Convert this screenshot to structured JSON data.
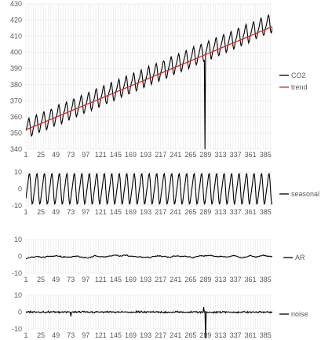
{
  "chart_data": [
    {
      "type": "line",
      "title": "",
      "xlabel": "",
      "ylabel": "",
      "ylim": [
        340,
        430
      ],
      "yticks": [
        340,
        350,
        360,
        370,
        380,
        390,
        400,
        410,
        420,
        430
      ],
      "x_range": [
        1,
        396
      ],
      "x_tick_labels": [
        "1",
        "25",
        "49",
        "73",
        "97",
        "121",
        "145",
        "169",
        "193",
        "217",
        "241",
        "265",
        "289",
        "313",
        "337",
        "361",
        "385"
      ],
      "grid": true,
      "legend_position": "right",
      "series": [
        {
          "name": "CO2",
          "color": "#000000",
          "baseline": 352.5,
          "slope": 0.1665,
          "seasonal_amplitude": 5.2,
          "annotation": "drops to 340 near x=288"
        },
        {
          "name": "trend",
          "color": "#d62728",
          "start": 352,
          "end": 416
        }
      ]
    },
    {
      "type": "line",
      "title": "",
      "ylim": [
        -10,
        10
      ],
      "yticks": [
        -10,
        0,
        10
      ],
      "x_range": [
        1,
        396
      ],
      "x_tick_labels": [
        "1",
        "25",
        "49",
        "73",
        "97",
        "121",
        "145",
        "169",
        "193",
        "217",
        "241",
        "265",
        "289",
        "313",
        "337",
        "361",
        "385"
      ],
      "grid": true,
      "legend_position": "right",
      "series": [
        {
          "name": "seasonal",
          "color": "#000000",
          "amplitude": 8.5,
          "period": 12
        }
      ]
    },
    {
      "type": "line",
      "title": "",
      "ylim": [
        -10,
        10
      ],
      "yticks": [
        -10,
        0,
        10
      ],
      "x_range": [
        1,
        396
      ],
      "x_tick_labels": [
        "1",
        "25",
        "49",
        "73",
        "97",
        "121",
        "145",
        "169",
        "193",
        "217",
        "241",
        "265",
        "289",
        "313",
        "337",
        "361",
        "385"
      ],
      "grid": true,
      "legend_position": "right",
      "series": [
        {
          "name": "AR",
          "color": "#000000",
          "range": [
            -2.5,
            2.5
          ]
        }
      ]
    },
    {
      "type": "line",
      "title": "",
      "ylim": [
        -10,
        10
      ],
      "yticks": [
        -10,
        0,
        10
      ],
      "x_range": [
        1,
        396
      ],
      "x_tick_labels": [
        "1",
        "25",
        "49",
        "73",
        "97",
        "121",
        "145",
        "169",
        "193",
        "217",
        "241",
        "265",
        "289",
        "313",
        "337",
        "361",
        "385"
      ],
      "grid": true,
      "legend_position": "right",
      "series": [
        {
          "name": "noise",
          "color": "#000000",
          "range": [
            -2,
            2
          ],
          "spikes": [
            {
              "x": 73,
              "y": -2.5
            },
            {
              "x": 286,
              "y": 3
            },
            {
              "x": 289,
              "y": -22
            }
          ]
        }
      ]
    }
  ]
}
